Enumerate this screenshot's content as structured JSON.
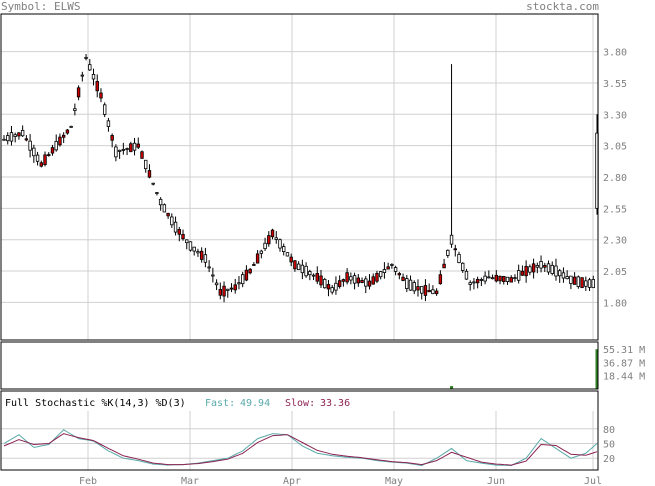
{
  "header": {
    "symbol_text": "Symbol: ELWS",
    "site": "stockta.com"
  },
  "colors": {
    "frame": "#000000",
    "grid": "#d0d0d0",
    "label": "#808080",
    "up_body": "#ffffff",
    "down_body": "#cc0000",
    "volume": "#2e7d22",
    "fast_line": "#5aa9a9",
    "slow_line": "#8b2252"
  },
  "chart_data": [
    {
      "type": "candlestick",
      "title": "",
      "ylim": [
        1.5,
        4.1
      ],
      "yticks": [
        "3.80",
        "3.55",
        "3.30",
        "3.05",
        "2.80",
        "2.55",
        "2.30",
        "2.05",
        "1.80"
      ],
      "yticks_values": [
        3.8,
        3.55,
        3.3,
        3.05,
        2.8,
        2.55,
        2.3,
        2.05,
        1.8
      ],
      "xticks": [
        "Feb",
        "Mar",
        "Apr",
        "May",
        "Jun",
        "Jul"
      ],
      "grid": true,
      "anchors": [
        [
          0,
          3.1
        ],
        [
          5,
          3.15
        ],
        [
          10,
          2.9
        ],
        [
          18,
          3.2
        ],
        [
          22,
          3.75
        ],
        [
          26,
          3.45
        ],
        [
          30,
          3.0
        ],
        [
          36,
          3.05
        ],
        [
          42,
          2.6
        ],
        [
          46,
          2.4
        ],
        [
          50,
          2.25
        ],
        [
          54,
          2.15
        ],
        [
          58,
          1.88
        ],
        [
          62,
          1.92
        ],
        [
          66,
          2.05
        ],
        [
          72,
          2.35
        ],
        [
          78,
          2.1
        ],
        [
          84,
          2.0
        ],
        [
          88,
          1.9
        ],
        [
          92,
          2.0
        ],
        [
          98,
          1.95
        ],
        [
          104,
          2.1
        ],
        [
          108,
          1.95
        ],
        [
          112,
          1.9
        ],
        [
          116,
          1.88
        ],
        [
          120,
          2.3
        ],
        [
          122,
          2.15
        ],
        [
          125,
          1.95
        ],
        [
          130,
          2.0
        ],
        [
          136,
          1.98
        ],
        [
          140,
          2.05
        ],
        [
          144,
          2.1
        ],
        [
          148,
          2.05
        ],
        [
          152,
          1.98
        ],
        [
          156,
          1.95
        ],
        [
          159,
          1.95
        ]
      ],
      "last_candle": {
        "open": 2.55,
        "high": 3.3,
        "low": 2.5,
        "close": 3.15
      }
    },
    {
      "type": "bar",
      "title": "",
      "ylabels": [
        "55.31 M",
        "36.87 M",
        "18.44 M"
      ],
      "ylabels_values": [
        55.31,
        36.87,
        18.44
      ],
      "ylim": [
        0,
        65
      ],
      "spikes": [
        {
          "index": 120,
          "value": 4
        },
        {
          "index": 159,
          "value": 55
        }
      ]
    },
    {
      "type": "line",
      "title": "Full Stochastic %K(14,3) %D(3)",
      "fast_label": "Fast:",
      "fast_value": "49.94",
      "slow_label": "Slow:",
      "slow_value": "33.36",
      "ylim": [
        0,
        100
      ],
      "yticks": [
        "80",
        "50",
        "20"
      ],
      "yticks_values": [
        80,
        50,
        20
      ],
      "series": [
        {
          "key": "fast",
          "anchors": [
            [
              0,
              50
            ],
            [
              4,
              68
            ],
            [
              8,
              42
            ],
            [
              12,
              48
            ],
            [
              16,
              78
            ],
            [
              20,
              60
            ],
            [
              24,
              55
            ],
            [
              28,
              35
            ],
            [
              32,
              20
            ],
            [
              36,
              15
            ],
            [
              40,
              8
            ],
            [
              44,
              6
            ],
            [
              48,
              7
            ],
            [
              52,
              10
            ],
            [
              56,
              15
            ],
            [
              60,
              20
            ],
            [
              64,
              35
            ],
            [
              68,
              60
            ],
            [
              72,
              70
            ],
            [
              76,
              68
            ],
            [
              80,
              45
            ],
            [
              84,
              30
            ],
            [
              88,
              25
            ],
            [
              92,
              22
            ],
            [
              96,
              20
            ],
            [
              100,
              15
            ],
            [
              104,
              12
            ],
            [
              108,
              10
            ],
            [
              112,
              5
            ],
            [
              116,
              20
            ],
            [
              120,
              40
            ],
            [
              124,
              15
            ],
            [
              128,
              10
            ],
            [
              132,
              6
            ],
            [
              136,
              5
            ],
            [
              140,
              20
            ],
            [
              144,
              60
            ],
            [
              148,
              40
            ],
            [
              152,
              20
            ],
            [
              156,
              30
            ],
            [
              159,
              49.94
            ]
          ]
        },
        {
          "key": "slow",
          "anchors": [
            [
              0,
              45
            ],
            [
              4,
              58
            ],
            [
              8,
              48
            ],
            [
              12,
              50
            ],
            [
              16,
              70
            ],
            [
              20,
              62
            ],
            [
              24,
              56
            ],
            [
              28,
              40
            ],
            [
              32,
              25
            ],
            [
              36,
              18
            ],
            [
              40,
              10
            ],
            [
              44,
              7
            ],
            [
              48,
              7
            ],
            [
              52,
              9
            ],
            [
              56,
              13
            ],
            [
              60,
              18
            ],
            [
              64,
              30
            ],
            [
              68,
              52
            ],
            [
              72,
              66
            ],
            [
              76,
              68
            ],
            [
              80,
              52
            ],
            [
              84,
              36
            ],
            [
              88,
              28
            ],
            [
              92,
              24
            ],
            [
              96,
              21
            ],
            [
              100,
              17
            ],
            [
              104,
              13
            ],
            [
              108,
              11
            ],
            [
              112,
              7
            ],
            [
              116,
              15
            ],
            [
              120,
              32
            ],
            [
              124,
              22
            ],
            [
              128,
              12
            ],
            [
              132,
              8
            ],
            [
              136,
              6
            ],
            [
              140,
              14
            ],
            [
              144,
              48
            ],
            [
              148,
              46
            ],
            [
              152,
              28
            ],
            [
              156,
              26
            ],
            [
              159,
              33.36
            ]
          ]
        }
      ]
    }
  ]
}
